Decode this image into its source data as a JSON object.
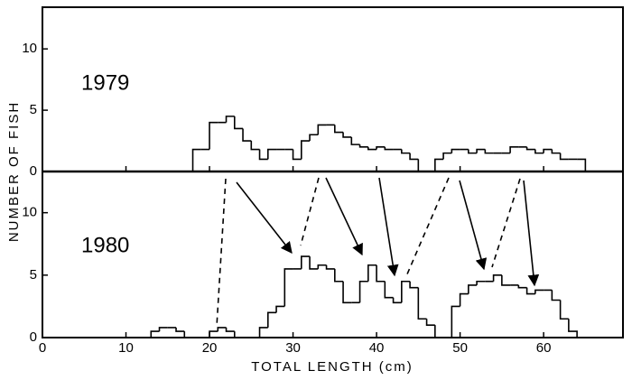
{
  "chart_data": [
    {
      "type": "histogram",
      "annotation": "1979",
      "ylabel": "NUMBER OF FISH",
      "bins": [
        18,
        19,
        20,
        21,
        22,
        23,
        24,
        25,
        26,
        27,
        28,
        29,
        30,
        31,
        32,
        33,
        34,
        35,
        36,
        37,
        38,
        39,
        40,
        41,
        42,
        43,
        44,
        45,
        46,
        47,
        48,
        49,
        50,
        51,
        52,
        53,
        54,
        55,
        56,
        57,
        58,
        59,
        60,
        61,
        62,
        63,
        64,
        65
      ],
      "values": [
        1.8,
        1.8,
        4,
        4,
        4.5,
        3.5,
        2.5,
        1.8,
        1,
        1.8,
        1.8,
        1.8,
        1,
        2.5,
        3,
        3.8,
        3.8,
        3.2,
        2.8,
        2.2,
        2,
        1.8,
        2,
        1.8,
        1.8,
        1.5,
        1,
        0,
        0,
        1,
        1.5,
        1.8,
        1.8,
        1.5,
        1.8,
        1.5,
        1.5,
        1.5,
        2,
        2,
        1.8,
        1.5,
        1.8,
        1.5,
        1,
        1,
        1
      ],
      "color": "#000000",
      "xlim": [
        0,
        69.5
      ],
      "ylim": [
        0,
        13.4
      ],
      "yticks": [
        0,
        5,
        10
      ]
    },
    {
      "type": "histogram",
      "annotation": "1980",
      "xlabel": "TOTAL LENGTH (cm)",
      "bins": [
        13,
        14,
        15,
        16,
        17,
        18,
        19,
        20,
        21,
        22,
        23,
        24,
        25,
        26,
        27,
        28,
        29,
        30,
        31,
        32,
        33,
        34,
        35,
        36,
        37,
        38,
        39,
        40,
        41,
        42,
        43,
        44,
        45,
        46,
        47,
        48,
        49,
        50,
        51,
        52,
        53,
        54,
        55,
        56,
        57,
        58,
        59,
        60,
        61,
        62,
        63,
        64
      ],
      "values": [
        0.5,
        0.8,
        0.8,
        0.5,
        0,
        0,
        0,
        0.5,
        0.8,
        0.5,
        0,
        0,
        0,
        0.8,
        2,
        2.5,
        5.5,
        5.5,
        6.5,
        5.5,
        5.8,
        5.5,
        4.5,
        2.8,
        2.8,
        4.5,
        5.8,
        4.5,
        3.2,
        2.8,
        4.5,
        4,
        1.5,
        1,
        0,
        0,
        2.5,
        3.5,
        4.2,
        4.5,
        4.5,
        5,
        4.2,
        4.2,
        4,
        3.5,
        3.8,
        3.8,
        3,
        1.5,
        0.5
      ],
      "color": "#000000",
      "xlim": [
        0,
        69.5
      ],
      "ylim": [
        0,
        13.3
      ],
      "yticks": [
        0,
        5,
        10
      ],
      "xticks": [
        0,
        10,
        20,
        30,
        40,
        50,
        60
      ]
    }
  ]
}
